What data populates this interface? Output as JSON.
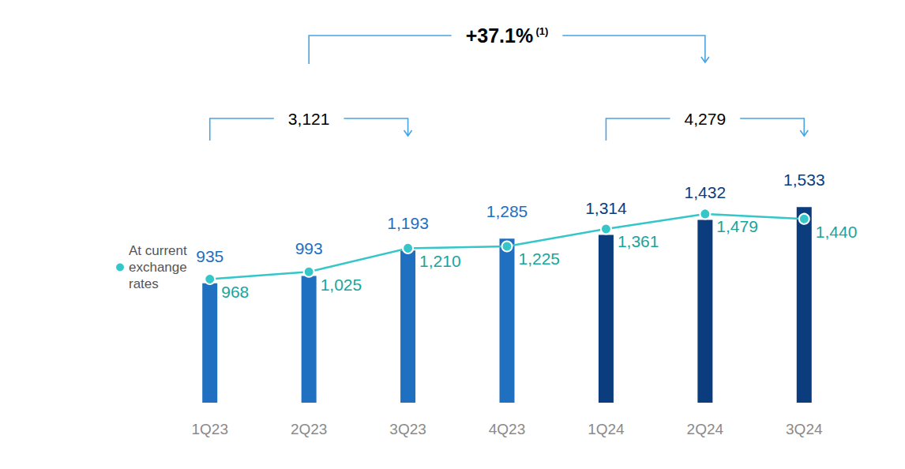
{
  "chart_data": {
    "type": "bar",
    "categories": [
      "1Q23",
      "2Q23",
      "3Q23",
      "4Q23",
      "1Q24",
      "2Q24",
      "3Q24"
    ],
    "series": [
      {
        "type": "bar",
        "values": [
          935,
          993,
          1193,
          1285,
          1314,
          1432,
          1533
        ],
        "value_labels": [
          "935",
          "993",
          "1,193",
          "1,285",
          "1,314",
          "1,432",
          "1,533"
        ],
        "colors": [
          "#1f70c1",
          "#1f70c1",
          "#1f70c1",
          "#1f70c1",
          "#0b3d7e",
          "#0b3d7e",
          "#0b3d7e"
        ]
      },
      {
        "name": "At current exchange rates",
        "type": "line",
        "color": "#34c6c8",
        "marker": "circle",
        "values": [
          968,
          1025,
          1210,
          1225,
          1361,
          1479,
          1440
        ],
        "value_labels": [
          "968",
          "1,025",
          "1,210",
          "1,225",
          "1,361",
          "1,479",
          "1,440"
        ]
      }
    ],
    "ylim": [
      0,
      2400
    ],
    "yticks": [
      0,
      2400
    ],
    "grid": false,
    "tick_labels": "x",
    "data_labels": true,
    "legend": "left",
    "annotations": [
      {
        "text": "+37.1%",
        "footnote": "(1)",
        "from": "2Q23",
        "to": "2Q24"
      },
      {
        "text": "3,121",
        "from": "1Q23",
        "to": "3Q23"
      },
      {
        "text": "4,279",
        "from": "1Q24",
        "to": "3Q24"
      }
    ]
  }
}
